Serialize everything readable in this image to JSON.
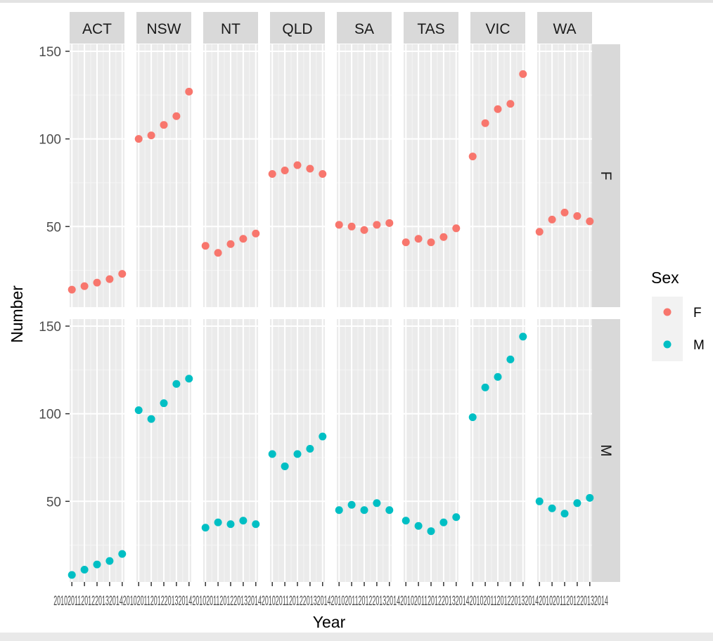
{
  "chart_data": {
    "type": "scatter",
    "xlabel": "Year",
    "ylabel": "Number",
    "column_facets": [
      "ACT",
      "NSW",
      "NT",
      "QLD",
      "SA",
      "TAS",
      "VIC",
      "WA"
    ],
    "row_facets": [
      "F",
      "M"
    ],
    "x": [
      2010,
      2011,
      2012,
      2013,
      2014
    ],
    "xlim": [
      2010,
      2014
    ],
    "ylim": [
      4,
      154
    ],
    "y_ticks": [
      50,
      100,
      150
    ],
    "x_tick_labels_text": "2010201120122013201420102011201220132014201020112012201320142010201120122013201420102011201220132014201020112012201320142010201120122013201420102011201220132014",
    "grid": true,
    "legend": {
      "title": "Sex",
      "placement": "right",
      "entries": [
        {
          "label": "F",
          "color": "#F8766D"
        },
        {
          "label": "M",
          "color": "#00BFC4"
        }
      ]
    },
    "panels": [
      {
        "state": "ACT",
        "sex": "F",
        "values": [
          14,
          16,
          18,
          20,
          23
        ]
      },
      {
        "state": "NSW",
        "sex": "F",
        "values": [
          100,
          102,
          108,
          113,
          127
        ]
      },
      {
        "state": "NT",
        "sex": "F",
        "values": [
          39,
          35,
          40,
          43,
          46
        ]
      },
      {
        "state": "QLD",
        "sex": "F",
        "values": [
          80,
          82,
          85,
          83,
          80
        ]
      },
      {
        "state": "SA",
        "sex": "F",
        "values": [
          51,
          50,
          48,
          51,
          52
        ]
      },
      {
        "state": "TAS",
        "sex": "F",
        "values": [
          41,
          43,
          41,
          44,
          49
        ]
      },
      {
        "state": "VIC",
        "sex": "F",
        "values": [
          90,
          109,
          117,
          120,
          137
        ]
      },
      {
        "state": "WA",
        "sex": "F",
        "values": [
          47,
          54,
          58,
          56,
          53
        ]
      },
      {
        "state": "ACT",
        "sex": "M",
        "values": [
          8,
          11,
          14,
          16,
          20
        ]
      },
      {
        "state": "NSW",
        "sex": "M",
        "values": [
          102,
          97,
          106,
          117,
          120
        ]
      },
      {
        "state": "NT",
        "sex": "M",
        "values": [
          35,
          38,
          37,
          39,
          37
        ]
      },
      {
        "state": "QLD",
        "sex": "M",
        "values": [
          77,
          70,
          77,
          80,
          87
        ]
      },
      {
        "state": "SA",
        "sex": "M",
        "values": [
          45,
          48,
          45,
          49,
          45
        ]
      },
      {
        "state": "TAS",
        "sex": "M",
        "values": [
          39,
          36,
          33,
          38,
          41
        ]
      },
      {
        "state": "VIC",
        "sex": "M",
        "values": [
          98,
          115,
          121,
          131,
          144
        ]
      },
      {
        "state": "WA",
        "sex": "M",
        "values": [
          50,
          46,
          43,
          49,
          52
        ]
      }
    ]
  }
}
